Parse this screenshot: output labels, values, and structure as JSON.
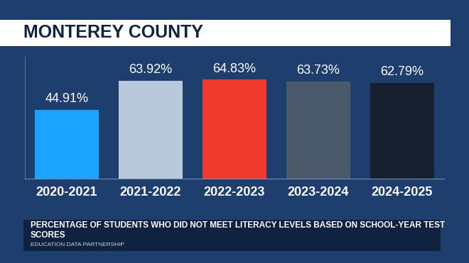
{
  "chart_data": {
    "type": "bar",
    "title": "MONTEREY COUNTY",
    "subtitle": "PERCENTAGE OF STUDENTS WHO DID NOT MEET LITERACY LEVELS BASED ON SCHOOL-YEAR TEST SCORES",
    "source": "EDUCATION DATA PARTNERSHIP",
    "categories": [
      "2020-2021",
      "2021-2022",
      "2022-2023",
      "2023-2024",
      "2024-2025"
    ],
    "values": [
      44.91,
      63.92,
      64.83,
      63.73,
      62.79
    ],
    "value_labels": [
      "44.91%",
      "63.92%",
      "64.83%",
      "63.73%",
      "62.79%"
    ],
    "colors": [
      "#1aa3ff",
      "#b8c9d9",
      "#f03a2e",
      "#4a5a6a",
      "#17202e"
    ],
    "ylim": [
      0,
      80
    ],
    "yticks": [],
    "grid": false,
    "data_labels": true,
    "tick_labels": "x"
  }
}
